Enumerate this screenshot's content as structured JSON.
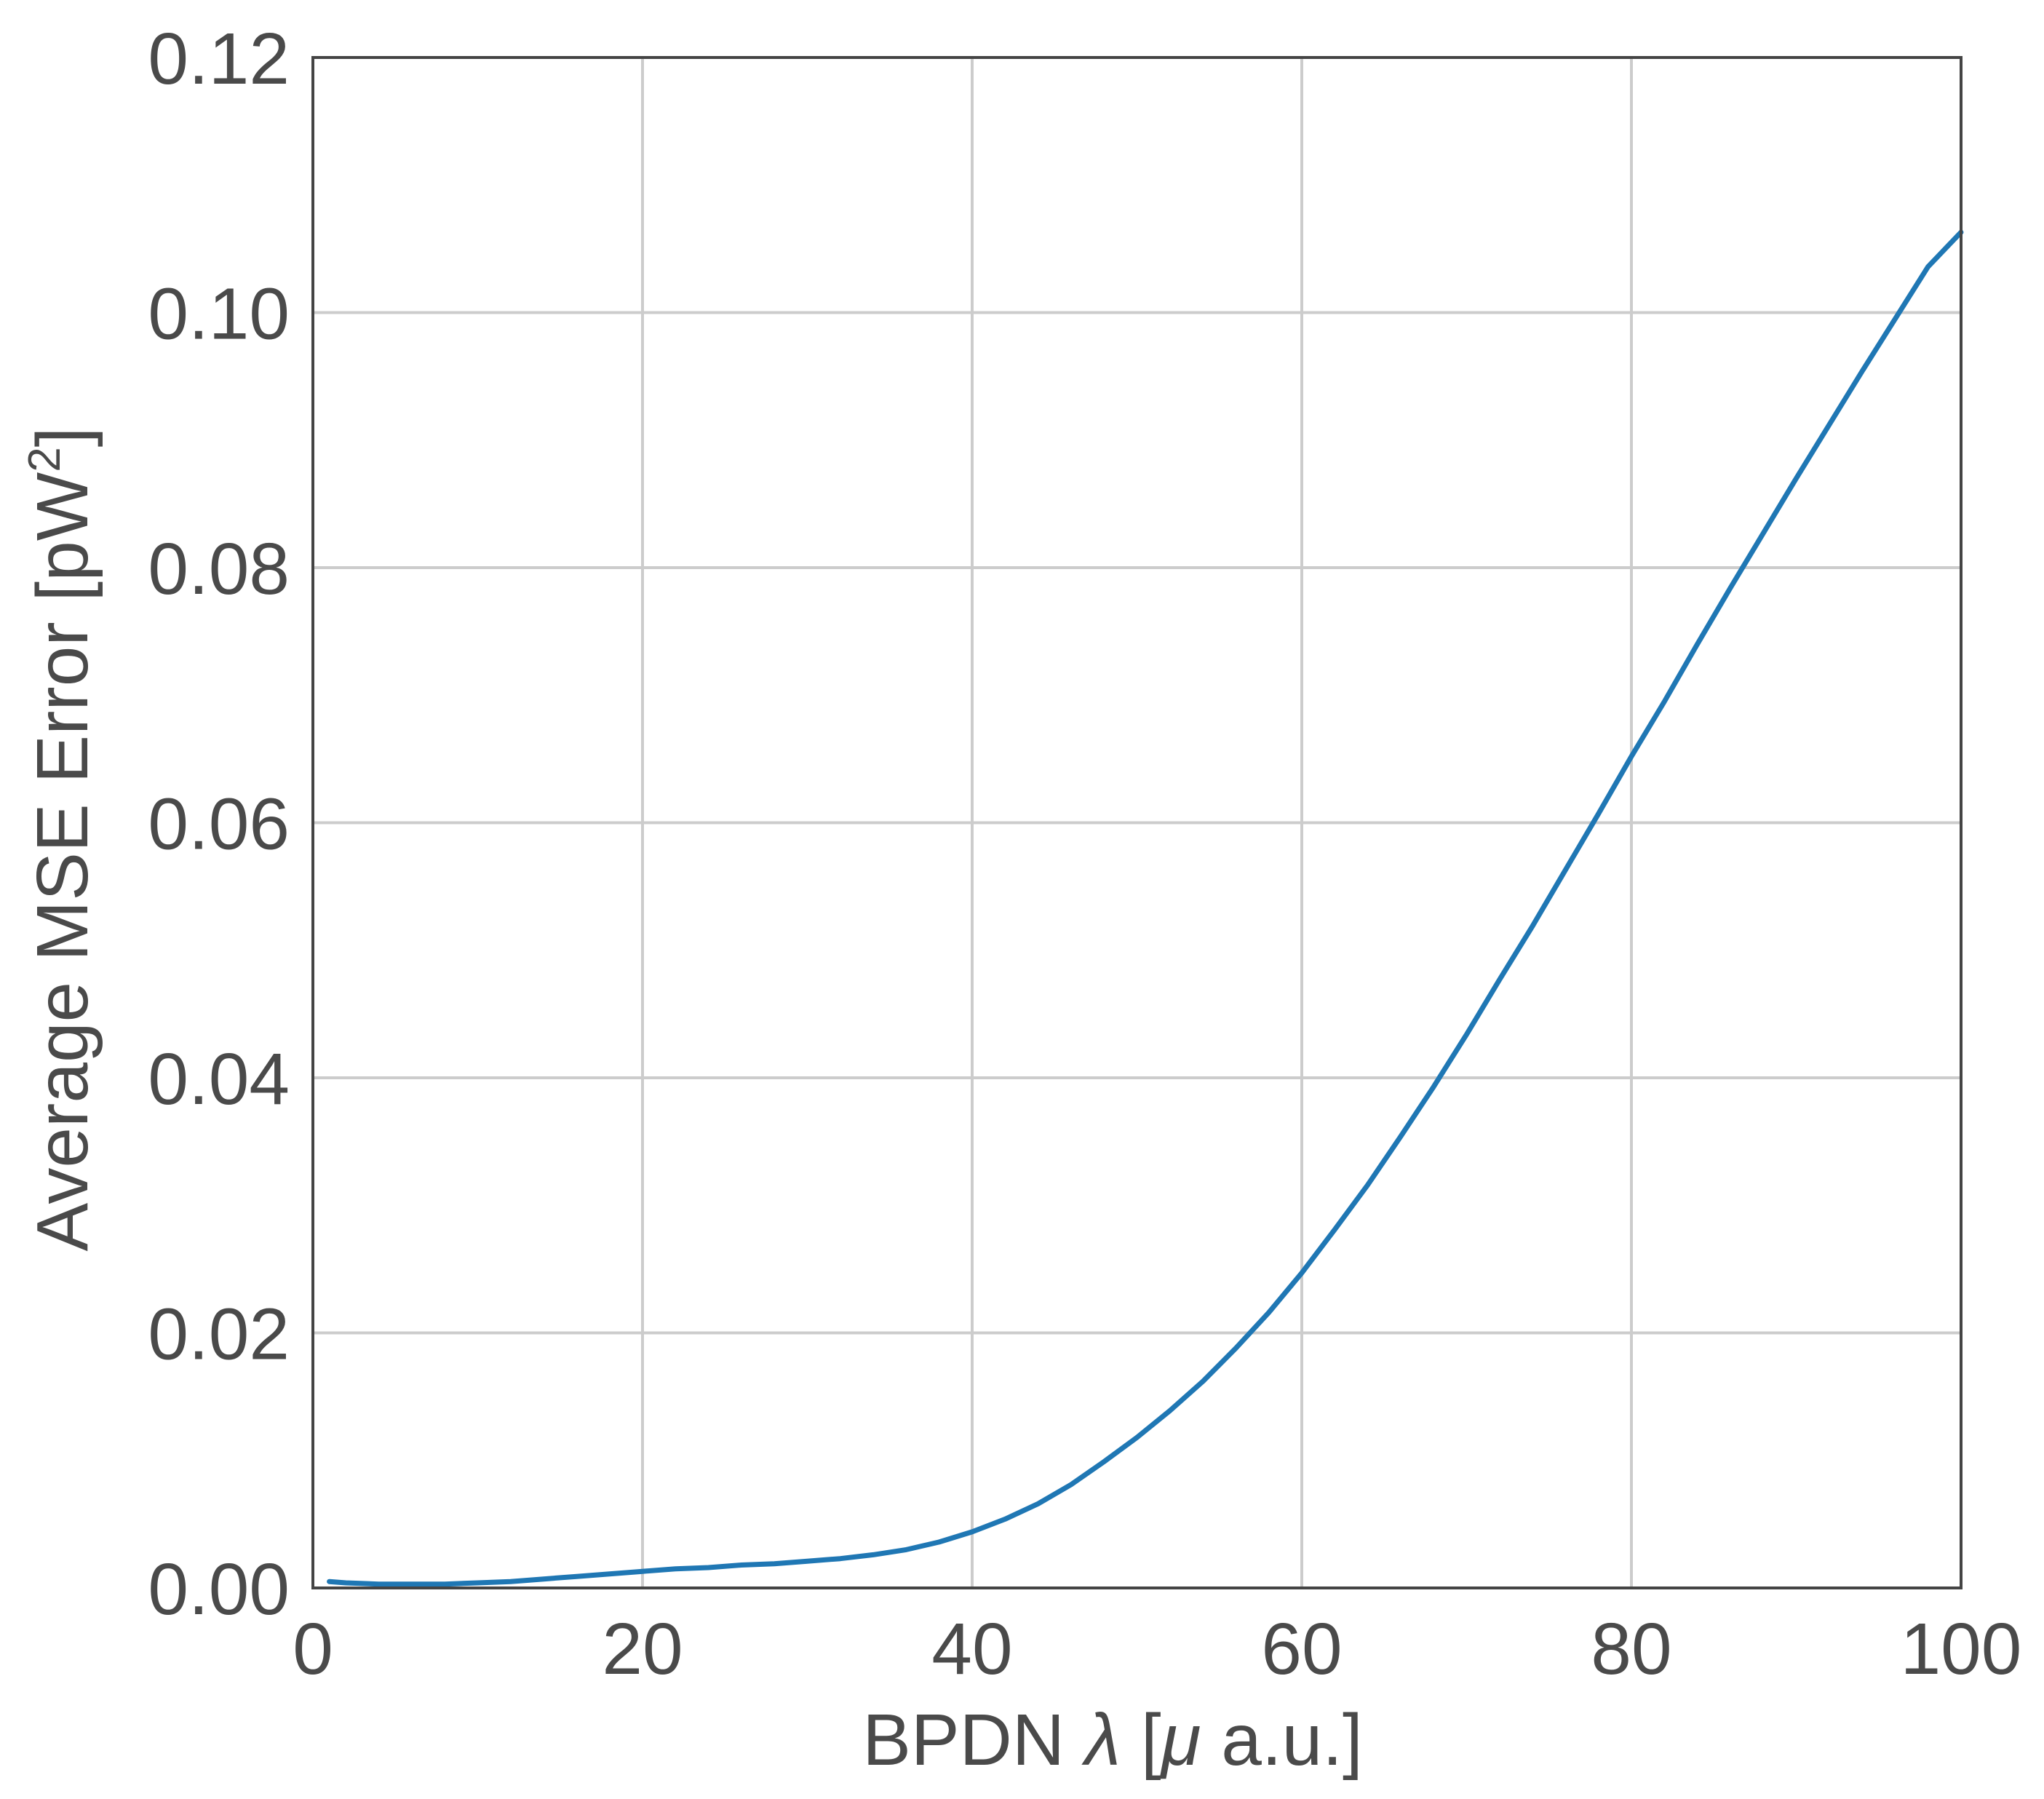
{
  "chart_data": {
    "type": "line",
    "title": "",
    "xlabel": "BPDN λ [μ a.u.]",
    "xlabel_parts": {
      "prefix": "BPDN ",
      "lambda": "λ",
      "middle": " [",
      "mu": "μ",
      "suffix": " a.u.]"
    },
    "ylabel": "Average MSE Error [pW²]",
    "ylabel_parts": {
      "main": "Average MSE Error [pW",
      "sup": "2",
      "close": "]"
    },
    "xlim": [
      0,
      100
    ],
    "ylim": [
      0,
      0.12
    ],
    "xticks": [
      "0",
      "20",
      "40",
      "60",
      "80",
      "100"
    ],
    "yticks": [
      "0.00",
      "0.02",
      "0.04",
      "0.06",
      "0.08",
      "0.10",
      "0.12"
    ],
    "grid": true,
    "legend": "none",
    "line_color": "#1f77b4",
    "series": [
      {
        "x": [
          1,
          2,
          4,
          6,
          8,
          10,
          12,
          14,
          16,
          18,
          20,
          22,
          24,
          26,
          28,
          30,
          32,
          34,
          36,
          38,
          40,
          42,
          44,
          46,
          48,
          50,
          52,
          54,
          56,
          58,
          60,
          62,
          64,
          66,
          68,
          70,
          72,
          74,
          76,
          78,
          80,
          82,
          84,
          86,
          88,
          90,
          92,
          94,
          96,
          98,
          100
        ],
        "y": [
          0.0005,
          0.0004,
          0.0003,
          0.0003,
          0.0003,
          0.0004,
          0.0005,
          0.0007,
          0.0009,
          0.0011,
          0.0013,
          0.0015,
          0.0016,
          0.0018,
          0.0019,
          0.0021,
          0.0023,
          0.0026,
          0.003,
          0.0036,
          0.0044,
          0.0054,
          0.0066,
          0.0081,
          0.0099,
          0.0118,
          0.0139,
          0.0162,
          0.0188,
          0.0216,
          0.0247,
          0.0281,
          0.0316,
          0.0354,
          0.0393,
          0.0434,
          0.0477,
          0.0519,
          0.0563,
          0.0607,
          0.0652,
          0.0695,
          0.074,
          0.0784,
          0.0827,
          0.087,
          0.0912,
          0.0954,
          0.0995,
          0.1036,
          0.1063
        ]
      }
    ]
  }
}
